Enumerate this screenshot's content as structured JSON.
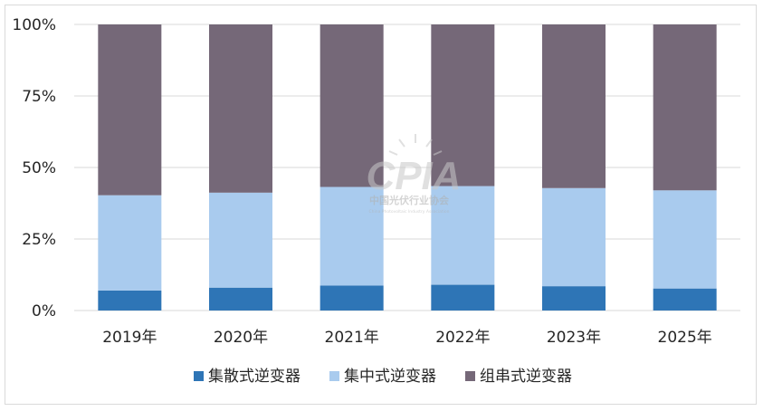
{
  "chart_data": {
    "type": "bar",
    "stacked": true,
    "categories": [
      "2019年",
      "2020年",
      "2021年",
      "2022年",
      "2023年",
      "2025年"
    ],
    "series": [
      {
        "name": "集散式逆变器",
        "color": "#2e75b6",
        "values": [
          7,
          8,
          8.7,
          9,
          8.5,
          7.7
        ]
      },
      {
        "name": "集中式逆变器",
        "color": "#a9cbee",
        "values": [
          33.3,
          33.2,
          34.5,
          34.5,
          34.3,
          34.3
        ]
      },
      {
        "name": "组串式逆变器",
        "color": "#756878",
        "values": [
          59.7,
          58.8,
          56.8,
          56.5,
          57.2,
          58
        ]
      }
    ],
    "y_ticks": [
      "0%",
      "25%",
      "50%",
      "75%",
      "100%"
    ],
    "ylim": [
      0,
      100
    ],
    "grid": true,
    "legend_position": "bottom"
  },
  "watermark": {
    "logo_text": "CPIA",
    "org_name_cn": "中国光伏行业协会",
    "org_name_en": "China Photovoltaic Industry Association"
  }
}
